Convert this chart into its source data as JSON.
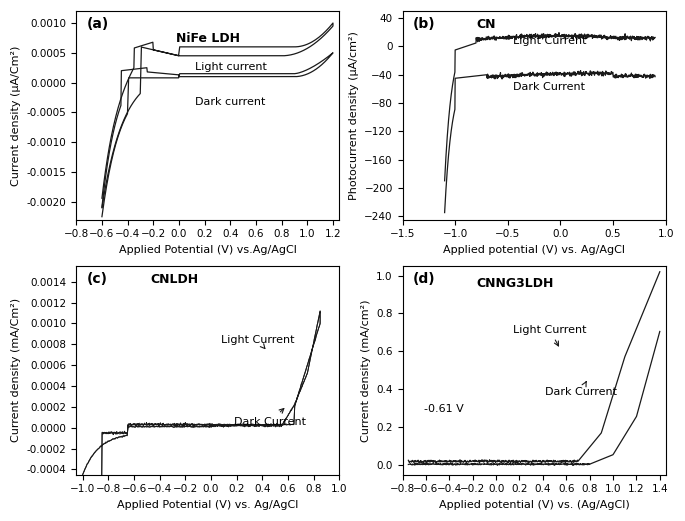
{
  "fig_width": 6.85,
  "fig_height": 5.21,
  "dpi": 100,
  "subplots": {
    "a": {
      "label": "(a)",
      "title": "NiFe LDH",
      "xlabel": "Applied Potential (V) vs.Ag/AgCl",
      "ylabel": "Current density (μA/Cm²)",
      "xlim": [
        -0.8,
        1.25
      ],
      "ylim": [
        -0.0023,
        0.0012
      ],
      "xticks": [
        -0.8,
        -0.6,
        -0.4,
        -0.2,
        0.0,
        0.2,
        0.4,
        0.6,
        0.8,
        1.0,
        1.2
      ],
      "yticks": [
        -0.002,
        -0.0015,
        -0.001,
        -0.0005,
        0.0,
        0.0005,
        0.001
      ],
      "light_label": "Light current",
      "dark_label": "Dark current"
    },
    "b": {
      "label": "(b)",
      "title": "CN",
      "xlabel": "Applied potential (V) vs. Ag/AgCl",
      "ylabel": "Photocurrent density (μA/cm²)",
      "xlim": [
        -1.5,
        1.0
      ],
      "ylim": [
        -245,
        50
      ],
      "xticks": [
        -1.5,
        -1.0,
        -0.5,
        0.0,
        0.5,
        1.0
      ],
      "yticks": [
        -240,
        -200,
        -160,
        -120,
        -80,
        -40,
        0,
        40
      ],
      "light_label": "Light Current",
      "dark_label": "Dark Current"
    },
    "c": {
      "label": "(c)",
      "title": "CNLDH",
      "xlabel": "Applied Potential (V) vs. Ag/AgCl",
      "ylabel": "Current density (mA/Cm²)",
      "xlim": [
        -1.05,
        1.0
      ],
      "ylim": [
        -0.00045,
        0.00155
      ],
      "xticks": [
        -1.0,
        -0.8,
        -0.6,
        -0.4,
        -0.2,
        0.0,
        0.2,
        0.4,
        0.6,
        0.8,
        1.0
      ],
      "yticks": [
        -0.0004,
        -0.0002,
        0.0,
        0.0002,
        0.0004,
        0.0006,
        0.0008,
        0.001,
        0.0012,
        0.0014
      ],
      "light_label": "Light Current",
      "dark_label": "Dark Current"
    },
    "d": {
      "label": "(d)",
      "title": "CNNG3LDH",
      "xlabel": "Applied potential (V) vs. (Ag/AgCl)",
      "ylabel": "Current density (mA/cm²)",
      "xlim": [
        -0.8,
        1.45
      ],
      "ylim": [
        -0.05,
        1.05
      ],
      "xticks": [
        -0.8,
        -0.6,
        -0.4,
        -0.2,
        0.0,
        0.2,
        0.4,
        0.6,
        0.8,
        1.0,
        1.2,
        1.4
      ],
      "yticks": [
        0.0,
        0.2,
        0.4,
        0.6,
        0.8,
        1.0
      ],
      "light_label": "Light Current",
      "dark_label": "Dark Current",
      "annotation": "-0.61 V"
    }
  },
  "line_color": "#1a1a1a",
  "background_color": "#ffffff",
  "fontsize_label": 8,
  "fontsize_tick": 7.5,
  "fontsize_title": 9,
  "fontsize_annotation": 8
}
